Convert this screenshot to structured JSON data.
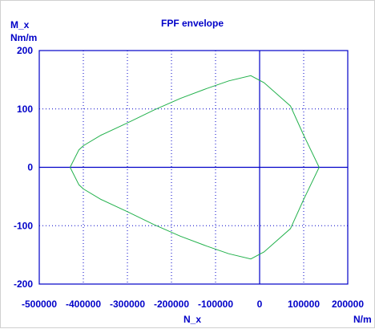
{
  "colors": {
    "axis": "#0000c8",
    "text": "#0000c8",
    "grid": "#0000c8",
    "series": "#22b14c",
    "background": "#ffffff"
  },
  "chart_data": {
    "type": "line",
    "title": "FPF envelope",
    "xlabel": "N_x",
    "xunit": "N/m",
    "ylabel": "M_x",
    "yunit": "Nm/m",
    "xlim": [
      -500000,
      200000
    ],
    "ylim": [
      -200,
      200
    ],
    "xticks": [
      -500000,
      -400000,
      -300000,
      -200000,
      -100000,
      0,
      100000,
      200000
    ],
    "yticks": [
      -200,
      -100,
      0,
      100,
      200
    ],
    "xtick_labels": [
      "-500000",
      "-400000",
      "-300000",
      "-200000",
      "-100000",
      "0",
      "100000",
      "200000"
    ],
    "ytick_labels": [
      "-200",
      "-100",
      "0",
      "100",
      "200"
    ],
    "grid": "dotted at interior ticks",
    "series": [
      {
        "x": [
          -430000,
          -410000,
          -400000,
          -360000,
          -300000,
          -240000,
          -180000,
          -120000,
          -70000,
          -20000,
          10000,
          70000,
          100000,
          135000,
          100000,
          70000,
          10000,
          -20000,
          -70000,
          -120000,
          -180000,
          -240000,
          -300000,
          -360000,
          -400000,
          -410000,
          -430000
        ],
        "y": [
          0,
          30,
          37,
          55,
          76,
          98,
          118,
          135,
          148,
          157,
          145,
          105,
          55,
          0,
          -55,
          -105,
          -145,
          -157,
          -148,
          -135,
          -118,
          -98,
          -76,
          -55,
          -37,
          -30,
          0
        ]
      }
    ]
  }
}
